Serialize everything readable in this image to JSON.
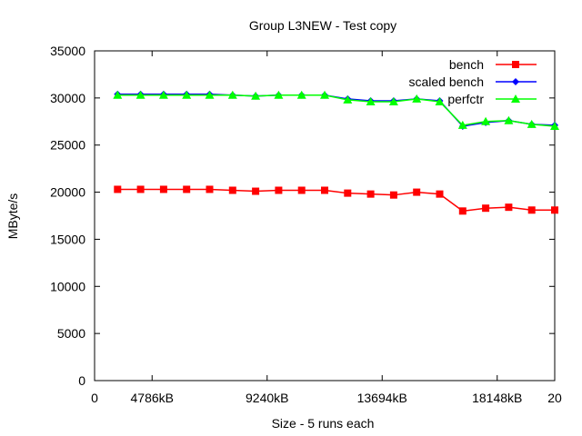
{
  "chart_data": {
    "type": "line",
    "title": "Group L3NEW - Test copy",
    "xlabel": "Size - 5 runs each",
    "ylabel": "MByte/s",
    "xlim": [
      0,
      20
    ],
    "ylim": [
      0,
      35000
    ],
    "x_ticks": [
      {
        "value": 0,
        "label": "0"
      },
      {
        "value": 2.5,
        "label": "4786kB"
      },
      {
        "value": 7.5,
        "label": "9240kB"
      },
      {
        "value": 12.5,
        "label": "13694kB"
      },
      {
        "value": 17.5,
        "label": "18148kB"
      },
      {
        "value": 20,
        "label": "20"
      }
    ],
    "y_ticks": [
      0,
      5000,
      10000,
      15000,
      20000,
      25000,
      30000,
      35000
    ],
    "grid": false,
    "legend_position": "top-right",
    "x": [
      1,
      2,
      3,
      4,
      5,
      6,
      7,
      8,
      9,
      10,
      11,
      12,
      13,
      14,
      15,
      16,
      17,
      18,
      19,
      20
    ],
    "series": [
      {
        "name": "bench",
        "color": "#ff0000",
        "marker": "square",
        "values": [
          20300,
          20300,
          20300,
          20300,
          20300,
          20200,
          20100,
          20200,
          20200,
          20200,
          19900,
          19800,
          19700,
          20000,
          19800,
          18000,
          18300,
          18400,
          18100,
          18100
        ]
      },
      {
        "name": "scaled bench",
        "color": "#0000ff",
        "marker": "diamond",
        "values": [
          30400,
          30400,
          30400,
          30400,
          30400,
          30300,
          30200,
          30300,
          30300,
          30300,
          29900,
          29700,
          29700,
          29900,
          29700,
          27000,
          27400,
          27600,
          27200,
          27100
        ]
      },
      {
        "name": "perfctr",
        "color": "#00ff00",
        "marker": "triangle",
        "values": [
          30300,
          30300,
          30300,
          30300,
          30300,
          30300,
          30200,
          30300,
          30300,
          30300,
          29800,
          29600,
          29600,
          29900,
          29600,
          27100,
          27500,
          27600,
          27200,
          27000
        ]
      }
    ]
  }
}
